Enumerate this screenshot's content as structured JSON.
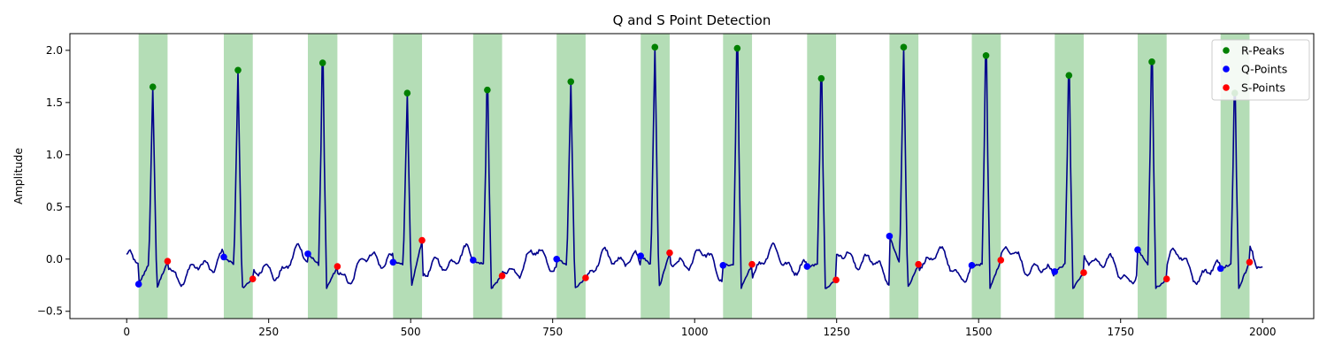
{
  "chart_data": {
    "type": "line",
    "title": "Q and S Point Detection",
    "xlabel": "",
    "ylabel": "Amplitude",
    "xlim": [
      -100,
      2090
    ],
    "ylim": [
      -0.57,
      2.16
    ],
    "xticks": [
      0,
      250,
      500,
      750,
      1000,
      1250,
      1500,
      1750,
      2000
    ],
    "yticks": [
      -0.5,
      0.0,
      0.5,
      1.0,
      1.5,
      2.0
    ],
    "xtick_labels": [
      "0",
      "250",
      "500",
      "750",
      "1000",
      "1250",
      "1500",
      "1750",
      "2000"
    ],
    "ytick_labels": [
      "−0.5",
      "0.0",
      "0.5",
      "1.0",
      "1.5",
      "2.0"
    ],
    "grid": false,
    "legend_position": "top-right",
    "colors": {
      "signal": "#00008b",
      "r_peaks": "#008000",
      "q_points": "#0000ff",
      "s_points": "#ff0000",
      "qrs_span": "#4caf50"
    },
    "shaded_regions": [
      [
        21,
        72
      ],
      [
        171,
        222
      ],
      [
        319,
        371
      ],
      [
        469,
        520
      ],
      [
        610,
        661
      ],
      [
        757,
        808
      ],
      [
        905,
        956
      ],
      [
        1050,
        1101
      ],
      [
        1198,
        1249
      ],
      [
        1343,
        1394
      ],
      [
        1488,
        1539
      ],
      [
        1634,
        1685
      ],
      [
        1780,
        1831
      ],
      [
        1926,
        1977
      ]
    ],
    "series": [
      {
        "name": "R-Peaks",
        "type": "scatter",
        "x": [
          46,
          196,
          345,
          494,
          635,
          782,
          930,
          1075,
          1223,
          1368,
          1513,
          1659,
          1805,
          1951
        ],
        "y": [
          1.65,
          1.81,
          1.88,
          1.59,
          1.62,
          1.7,
          2.03,
          2.02,
          1.73,
          2.03,
          1.95,
          1.76,
          1.89,
          1.59
        ]
      },
      {
        "name": "Q-Points",
        "type": "scatter",
        "x": [
          21,
          171,
          319,
          469,
          610,
          757,
          905,
          1050,
          1198,
          1343,
          1488,
          1634,
          1780,
          1926
        ],
        "y": [
          -0.24,
          0.02,
          0.05,
          -0.03,
          -0.01,
          0.0,
          0.03,
          -0.06,
          -0.07,
          0.22,
          -0.06,
          -0.12,
          0.09,
          -0.09
        ]
      },
      {
        "name": "S-Points",
        "type": "scatter",
        "x": [
          72,
          222,
          371,
          520,
          661,
          808,
          956,
          1101,
          1249,
          1394,
          1539,
          1685,
          1831,
          1977
        ],
        "y": [
          -0.02,
          -0.19,
          -0.07,
          0.18,
          -0.16,
          -0.18,
          0.06,
          -0.05,
          -0.2,
          -0.05,
          -0.01,
          -0.13,
          -0.19,
          -0.03
        ]
      }
    ]
  }
}
